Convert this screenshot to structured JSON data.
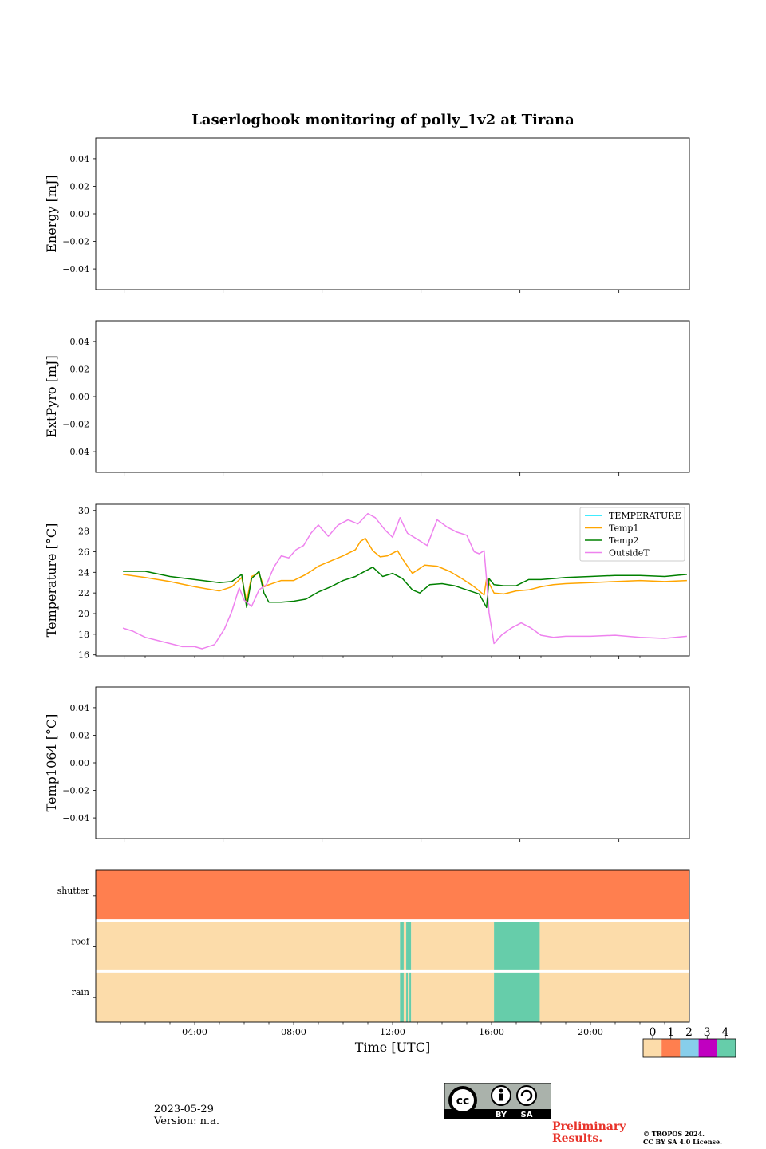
{
  "figure": {
    "title": "Laserlogbook monitoring of polly_1v2 at Tirana",
    "date": "2023-05-29",
    "version": "Version: n.a.",
    "preliminary": "Preliminary\nResults.",
    "copyright_line1": "© TROPOS 2024.",
    "copyright_line2": "CC BY SA 4.0 License.",
    "license_badge": {
      "left": "BY",
      "right": "SA"
    }
  },
  "chart_data": [
    {
      "type": "line",
      "ylabel": "Energy [mJ]",
      "ylim": [
        -0.055,
        0.055
      ],
      "yticks": [
        "0.04",
        "0.02",
        "0.00",
        "−0.02",
        "−0.04"
      ],
      "series": []
    },
    {
      "type": "line",
      "ylabel": "ExtPyro [mJ]",
      "ylim": [
        -0.055,
        0.055
      ],
      "yticks": [
        "0.04",
        "0.02",
        "0.00",
        "−0.02",
        "−0.04"
      ],
      "series": []
    },
    {
      "type": "line",
      "ylabel": "Temperature [°C]",
      "ylim": [
        15.9,
        30.6
      ],
      "yticks": [
        "30",
        "28",
        "26",
        "24",
        "22",
        "20",
        "18",
        "16"
      ],
      "xlim_hours": [
        0,
        24
      ],
      "legend_position": "top-right",
      "series": [
        {
          "name": "TEMPERATURE",
          "color": "#00e5ff",
          "x": [],
          "y": []
        },
        {
          "name": "Temp1",
          "color": "#ffa500",
          "x": [
            1.1,
            2,
            3,
            4,
            5,
            5.5,
            5.9,
            6.1,
            6.3,
            6.6,
            6.8,
            7,
            7.5,
            8,
            8.5,
            9,
            9.5,
            10,
            10.5,
            10.7,
            10.9,
            11.2,
            11.5,
            11.8,
            12.2,
            12.4,
            12.8,
            13.3,
            13.8,
            14.3,
            14.8,
            15.3,
            15.7,
            15.8,
            16.1,
            16.5,
            17,
            17.5,
            18,
            18.5,
            19,
            20,
            21,
            22,
            23,
            23.9
          ],
          "y": [
            23.8,
            23.5,
            23.1,
            22.6,
            22.2,
            22.6,
            23.5,
            21.2,
            23.6,
            23.9,
            22.6,
            22.8,
            23.2,
            23.2,
            23.8,
            24.6,
            25.1,
            25.6,
            26.2,
            27.0,
            27.3,
            26.1,
            25.5,
            25.6,
            26.1,
            25.3,
            23.9,
            24.7,
            24.6,
            24.1,
            23.4,
            22.6,
            21.8,
            23.4,
            22.0,
            21.9,
            22.2,
            22.3,
            22.6,
            22.8,
            22.9,
            23.0,
            23.1,
            23.2,
            23.1,
            23.2
          ]
        },
        {
          "name": "Temp2",
          "color": "#008000",
          "x": [
            1.1,
            2,
            3,
            4,
            5,
            5.5,
            5.9,
            6.1,
            6.3,
            6.6,
            6.8,
            7,
            7.5,
            8,
            8.5,
            9,
            9.5,
            10,
            10.5,
            10.8,
            11.2,
            11.6,
            12,
            12.4,
            12.8,
            13.1,
            13.5,
            14,
            14.5,
            15,
            15.5,
            15.8,
            15.9,
            16.1,
            16.5,
            17,
            17.5,
            18,
            18.5,
            19,
            20,
            21,
            22,
            23,
            23.9
          ],
          "y": [
            24.1,
            24.1,
            23.6,
            23.3,
            23.0,
            23.1,
            23.8,
            20.6,
            23.4,
            24.1,
            22.0,
            21.1,
            21.1,
            21.2,
            21.4,
            22.1,
            22.6,
            23.2,
            23.6,
            24.0,
            24.5,
            23.6,
            23.9,
            23.4,
            22.3,
            22.0,
            22.8,
            22.9,
            22.7,
            22.3,
            21.9,
            20.6,
            23.4,
            22.8,
            22.7,
            22.7,
            23.3,
            23.3,
            23.4,
            23.5,
            23.6,
            23.7,
            23.7,
            23.6,
            23.8
          ]
        },
        {
          "name": "OutsideT",
          "color": "#ee82ee",
          "x": [
            1.1,
            1.5,
            2,
            2.5,
            3,
            3.5,
            4,
            4.3,
            4.8,
            5.2,
            5.5,
            5.8,
            6.0,
            6.3,
            6.6,
            6.9,
            7.2,
            7.5,
            7.8,
            8.1,
            8.4,
            8.7,
            9.0,
            9.4,
            9.8,
            10.2,
            10.6,
            11,
            11.3,
            11.7,
            12.0,
            12.3,
            12.6,
            13,
            13.4,
            13.8,
            14.2,
            14.6,
            15.0,
            15.3,
            15.5,
            15.7,
            15.8,
            15.9,
            16.1,
            16.4,
            16.8,
            17.2,
            17.6,
            18,
            18.5,
            19,
            20,
            21,
            22,
            23,
            23.9
          ],
          "y": [
            18.6,
            18.3,
            17.7,
            17.4,
            17.1,
            16.8,
            16.8,
            16.6,
            17.0,
            18.5,
            20.2,
            22.5,
            21.3,
            20.7,
            22.3,
            22.8,
            24.5,
            25.6,
            25.4,
            26.2,
            26.6,
            27.8,
            28.6,
            27.5,
            28.6,
            29.1,
            28.7,
            29.7,
            29.3,
            28.1,
            27.4,
            29.3,
            27.8,
            27.2,
            26.6,
            29.1,
            28.4,
            27.9,
            27.6,
            26.0,
            25.8,
            26.1,
            23.3,
            20.1,
            17.1,
            17.9,
            18.6,
            19.1,
            18.6,
            17.9,
            17.7,
            17.8,
            17.8,
            17.9,
            17.7,
            17.6,
            17.8
          ]
        }
      ]
    },
    {
      "type": "line",
      "ylabel": "Temp1064 [°C]",
      "ylim": [
        -0.055,
        0.055
      ],
      "yticks": [
        "0.04",
        "0.02",
        "0.00",
        "−0.02",
        "−0.04"
      ],
      "series": []
    },
    {
      "type": "heatmap",
      "rows": [
        "shutter",
        "roof",
        "rain"
      ],
      "xlabel": "Time [UTC]",
      "xticks": [
        "04:00",
        "08:00",
        "12:00",
        "16:00",
        "20:00"
      ],
      "xlim_hours": [
        0,
        24
      ],
      "colorbar": {
        "ticks": [
          "0",
          "1",
          "2",
          "3",
          "4"
        ],
        "colors": [
          "#fcdcaa",
          "#ff7f4f",
          "#87ceeb",
          "#c000c0",
          "#66cdaa"
        ]
      },
      "states": {
        "shutter": [
          {
            "start": 0,
            "end": 24,
            "value": 1
          }
        ],
        "roof": [
          {
            "start": 0,
            "end": 12.3,
            "value": 0
          },
          {
            "start": 12.3,
            "end": 12.45,
            "value": 4
          },
          {
            "start": 12.45,
            "end": 12.55,
            "value": 0
          },
          {
            "start": 12.55,
            "end": 12.75,
            "value": 4
          },
          {
            "start": 12.75,
            "end": 16.1,
            "value": 0
          },
          {
            "start": 16.1,
            "end": 17.95,
            "value": 4
          },
          {
            "start": 17.95,
            "end": 24,
            "value": 0
          }
        ],
        "rain": [
          {
            "start": 0,
            "end": 12.3,
            "value": 0
          },
          {
            "start": 12.3,
            "end": 12.45,
            "value": 4
          },
          {
            "start": 12.45,
            "end": 12.55,
            "value": 0
          },
          {
            "start": 12.55,
            "end": 12.62,
            "value": 4
          },
          {
            "start": 12.62,
            "end": 12.68,
            "value": 0
          },
          {
            "start": 12.68,
            "end": 12.75,
            "value": 4
          },
          {
            "start": 12.75,
            "end": 16.1,
            "value": 0
          },
          {
            "start": 16.1,
            "end": 17.95,
            "value": 4
          },
          {
            "start": 17.95,
            "end": 24,
            "value": 0
          }
        ]
      }
    }
  ]
}
